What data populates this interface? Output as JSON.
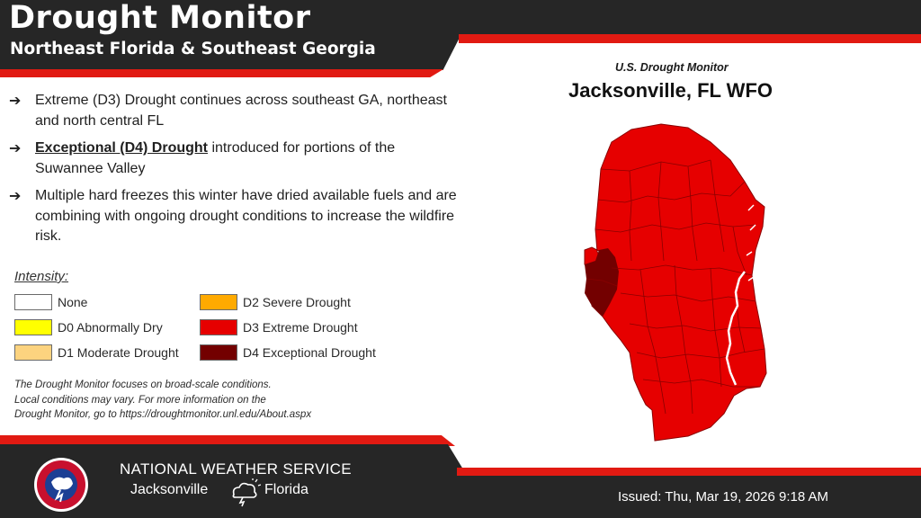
{
  "header": {
    "title": "Drought Monitor",
    "subtitle": "Northeast Florida & Southeast Georgia"
  },
  "bullets": [
    {
      "arrow": "➔",
      "bold": "",
      "text": "Extreme (D3) Drought continues across southeast GA, northeast and north central FL"
    },
    {
      "arrow": "➔",
      "bold": "Exceptional (D4) Drought",
      "text": " introduced for portions of the Suwannee Valley"
    },
    {
      "arrow": "➔",
      "bold": "",
      "text": "Multiple hard freezes this winter have dried available fuels and are combining with ongoing drought conditions to increase the wildfire risk."
    }
  ],
  "legend": {
    "title": "Intensity:",
    "items": [
      {
        "label": "None",
        "color": "#ffffff"
      },
      {
        "label": "D0 Abnormally Dry",
        "color": "#ffff00"
      },
      {
        "label": "D1 Moderate Drought",
        "color": "#fcd37f"
      },
      {
        "label": "D2 Severe Drought",
        "color": "#ffaa00"
      },
      {
        "label": "D3 Extreme Drought",
        "color": "#e60000"
      },
      {
        "label": "D4 Exceptional Drought",
        "color": "#730000"
      }
    ]
  },
  "note": {
    "line1": "The Drought Monitor focuses on broad-scale conditions.",
    "line2": "Local conditions may vary. For more information on the",
    "line3": "Drought Monitor, go to https://droughtmonitor.unl.edu/About.aspx"
  },
  "map": {
    "subtitle": "U.S. Drought Monitor",
    "title": "Jacksonville, FL WFO",
    "d3_color": "#e60000",
    "d4_color": "#730000",
    "border_color": "#8a0000"
  },
  "footer": {
    "agency": "NATIONAL WEATHER SERVICE",
    "city": "Jacksonville",
    "state": "Florida",
    "issued": "Issued: Thu, Mar 19, 2026 9:18 AM"
  },
  "colors": {
    "dark": "#262626",
    "accent_red": "#e11a12"
  }
}
